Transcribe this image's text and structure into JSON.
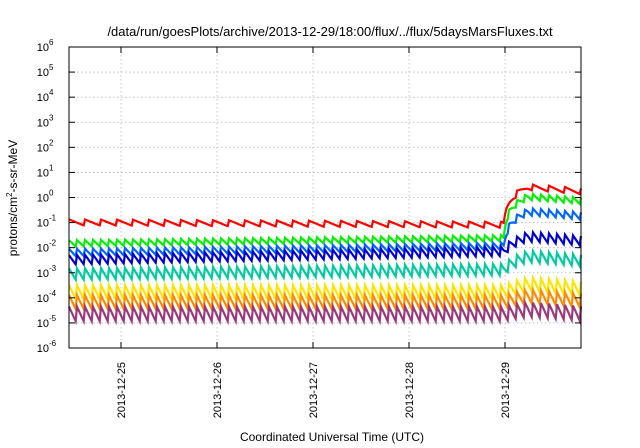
{
  "chart_data": {
    "type": "line",
    "title": "/data/run/goesPlots/archive/2013-12-29/18:00/flux/../flux/5daysMarsFluxes.txt",
    "xlabel": "Coordinated Universal Time (UTC)",
    "ylabel": {
      "prefix": "protons/cm",
      "superscript": "2",
      "suffix": "-s-sr-MeV"
    },
    "yscale": "log",
    "ylim_exponents": [
      -6,
      6
    ],
    "y_ticks": [
      {
        "base": "10",
        "exp": "-6"
      },
      {
        "base": "10",
        "exp": "-5"
      },
      {
        "base": "10",
        "exp": "-4"
      },
      {
        "base": "10",
        "exp": "-3"
      },
      {
        "base": "10",
        "exp": "-2"
      },
      {
        "base": "10",
        "exp": "-1"
      },
      {
        "base": "10",
        "exp": "0"
      },
      {
        "base": "10",
        "exp": "1"
      },
      {
        "base": "10",
        "exp": "2"
      },
      {
        "base": "10",
        "exp": "3"
      },
      {
        "base": "10",
        "exp": "4"
      },
      {
        "base": "10",
        "exp": "5"
      },
      {
        "base": "10",
        "exp": "6"
      }
    ],
    "xlim": [
      "2013-12-24T11:00",
      "2013-12-29T19:00"
    ],
    "x_ticks": [
      {
        "label": "2013-12-25",
        "date": "2013-12-25T00:00"
      },
      {
        "label": "2013-12-26",
        "date": "2013-12-26T00:00"
      },
      {
        "label": "2013-12-27",
        "date": "2013-12-27T00:00"
      },
      {
        "label": "2013-12-28",
        "date": "2013-12-28T00:00"
      },
      {
        "label": "2013-12-29",
        "date": "2013-12-29T00:00"
      }
    ],
    "grid": true,
    "legend": "none",
    "event_onset": "2013-12-28T23:45",
    "series": [
      {
        "color": "#ff0000",
        "base": 0.1,
        "swing": 1.8,
        "periods_per_day": 6,
        "trend": 0.8,
        "event_level": 2.5
      },
      {
        "color": "#00ee00",
        "base": 0.014,
        "swing": 2.0,
        "periods_per_day": 12,
        "trend": 1.6,
        "event_level": 1.0
      },
      {
        "color": "#0066ff",
        "base": 0.006,
        "swing": 2.2,
        "periods_per_day": 12,
        "trend": 1.8,
        "event_level": 0.25
      },
      {
        "color": "#0000cc",
        "base": 0.003,
        "swing": 2.8,
        "periods_per_day": 12,
        "trend": 2.2,
        "event_level": 0.025
      },
      {
        "color": "#00c8a0",
        "base": 0.0008,
        "swing": 3.5,
        "periods_per_day": 12,
        "trend": 1.5,
        "event_level": 0.004
      },
      {
        "color": "#ffe400",
        "base": 0.00015,
        "swing": 4.5,
        "periods_per_day": 12,
        "trend": 1.0,
        "event_level": 0.0003
      },
      {
        "color": "#ff8c00",
        "base": 6e-05,
        "swing": 4.5,
        "periods_per_day": 12,
        "trend": 1.0,
        "event_level": 0.0001
      },
      {
        "color": "#993a7a",
        "base": 2e-05,
        "swing": 5.0,
        "periods_per_day": 12,
        "trend": 1.0,
        "event_level": 3e-05
      }
    ]
  }
}
